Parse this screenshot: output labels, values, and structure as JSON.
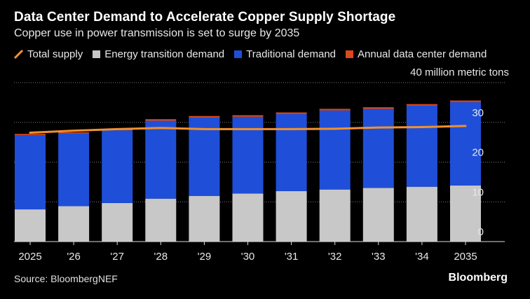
{
  "header": {
    "title": "Data Center Demand to Accelerate Copper Supply Shortage",
    "subtitle": "Copper use in power transmission is set to surge by 2035",
    "unit_label": "40 million metric tons"
  },
  "legend": [
    {
      "label": "Total supply",
      "color": "#f0912e",
      "kind": "line-icon"
    },
    {
      "label": "Energy transition demand",
      "color": "#c8c8c8",
      "kind": "swatch"
    },
    {
      "label": "Traditional demand",
      "color": "#1f4fd8",
      "kind": "swatch"
    },
    {
      "label": "Annual data center demand",
      "color": "#d9481f",
      "kind": "swatch"
    }
  ],
  "footer": {
    "source": "Source: BloombergNEF",
    "brand": "Bloomberg"
  },
  "chart_data": {
    "type": "bar",
    "stacked": true,
    "categories": [
      "2025",
      "'26",
      "'27",
      "'28",
      "'29",
      "'30",
      "'31",
      "'32",
      "'33",
      "'34",
      "2035"
    ],
    "series": [
      {
        "name": "Energy transition demand",
        "color": "#c8c8c8",
        "values": [
          8.1,
          8.9,
          9.7,
          10.8,
          11.5,
          12.1,
          12.7,
          13.1,
          13.5,
          13.8,
          14.1
        ]
      },
      {
        "name": "Traditional demand",
        "color": "#1f4fd8",
        "values": [
          18.7,
          18.3,
          18.3,
          19.6,
          19.7,
          19.3,
          19.4,
          19.9,
          19.9,
          20.4,
          21.0
        ]
      },
      {
        "name": "Annual data center demand",
        "color": "#d9481f",
        "values": [
          0.3,
          0.3,
          0.3,
          0.4,
          0.4,
          0.4,
          0.4,
          0.4,
          0.4,
          0.4,
          0.4
        ]
      }
    ],
    "line_series": {
      "name": "Total supply",
      "color": "#f0912e",
      "values": [
        27.4,
        27.9,
        28.3,
        28.6,
        28.3,
        28.3,
        28.3,
        28.4,
        28.7,
        28.8,
        29.1
      ]
    },
    "y_ticks": [
      "0",
      "10",
      "20",
      "30"
    ],
    "ylim": [
      0,
      40
    ],
    "grid": true,
    "y_axis_side": "right"
  }
}
